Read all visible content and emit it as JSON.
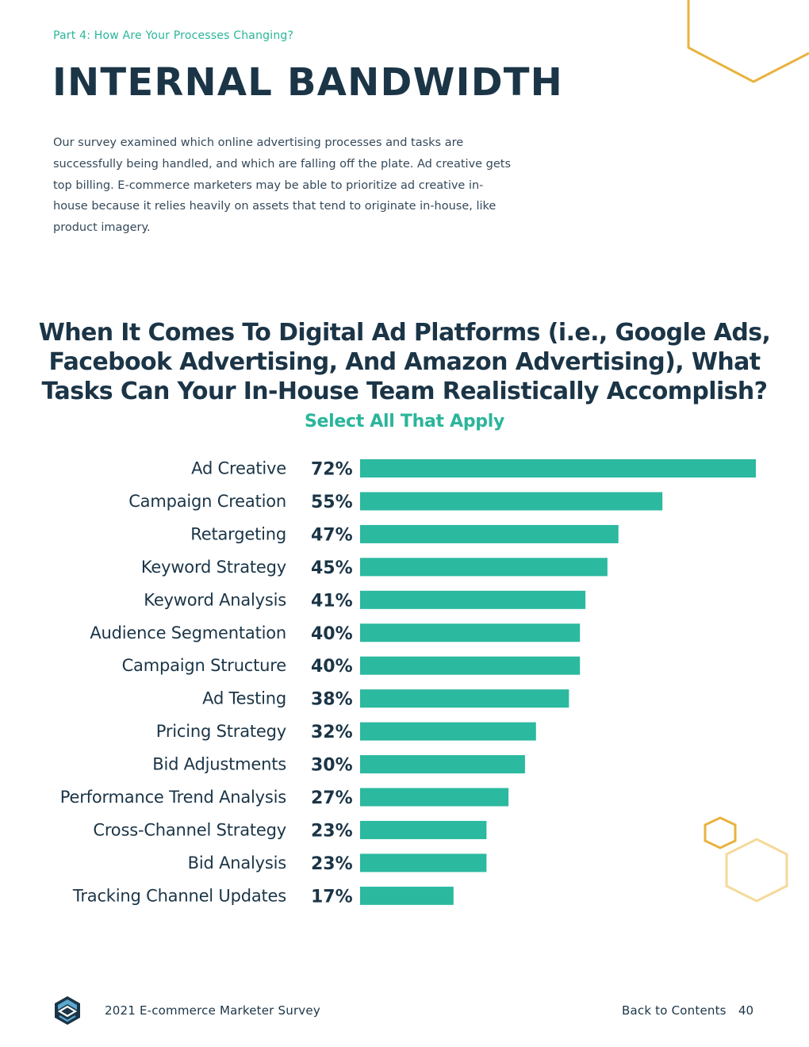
{
  "header": {
    "section_label": "Part 4: How Are Your Processes Changing?",
    "title": "INTERNAL BANDWIDTH"
  },
  "intro_text": "Our survey examined which online advertising processes and tasks are successfully being handled, and which are falling off the plate. Ad creative gets top billing. E-commerce marketers may be able to prioritize ad creative in-house because it relies heavily on assets that tend to originate in-house, like product imagery.",
  "colors": {
    "bar": "#2bb99f",
    "text": "#1b3547",
    "accent": "#2bb59b",
    "hex_gold": "#e8b33f",
    "hex_gold_light": "#f5d99a"
  },
  "chart_data": {
    "type": "bar",
    "orientation": "horizontal",
    "title": "When It Comes To Digital Ad Platforms (i.e., Google Ads, Facebook Advertising, And Amazon Advertising), What Tasks Can Your In-House Team Realistically Accomplish?",
    "subtitle": "Select All That Apply",
    "xlim": [
      0,
      72
    ],
    "categories": [
      "Ad Creative",
      "Campaign Creation",
      "Retargeting",
      "Keyword Strategy",
      "Keyword Analysis",
      "Audience Segmentation",
      "Campaign Structure",
      "Ad Testing",
      "Pricing Strategy",
      "Bid Adjustments",
      "Performance Trend Analysis",
      "Cross-Channel Strategy",
      "Bid Analysis",
      "Tracking Channel Updates"
    ],
    "values": [
      72,
      55,
      47,
      45,
      41,
      40,
      40,
      38,
      32,
      30,
      27,
      23,
      23,
      17
    ],
    "value_labels": [
      "72%",
      "55%",
      "47%",
      "45%",
      "41%",
      "40%",
      "40%",
      "38%",
      "32%",
      "30%",
      "27%",
      "23%",
      "23%",
      "17%"
    ]
  },
  "footer": {
    "doc_title": "2021 E-commerce Marketer Survey",
    "back_link": "Back to Contents",
    "page_number": "40"
  }
}
